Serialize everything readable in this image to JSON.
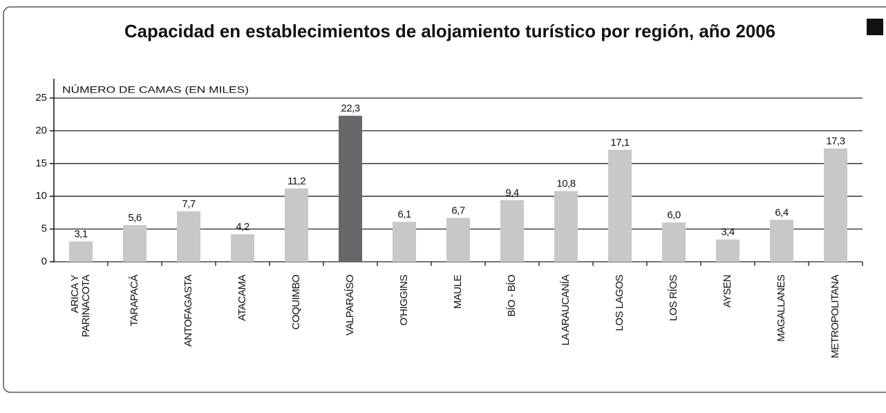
{
  "chart_data": {
    "type": "bar",
    "title": "Capacidad en establecimientos de alojamiento turístico por región, año 2006",
    "y_axis_label": "NÚMERO DE CAMAS (EN MILES)",
    "categories": [
      "ARICA Y\nPARINACOTA",
      "TARAPACÁ",
      "ANTOFAGASTA",
      "ATACAMA",
      "COQUIMBO",
      "VALPARAÍSO",
      "O'HIGGINS",
      "MAULE",
      "BÍO - BÍO",
      "LA ARAUCANÍA",
      "LOS LAGOS",
      "LOS RÍOS",
      "AYSEN",
      "MAGALLANES",
      "METROPOLITANA"
    ],
    "values": [
      3.1,
      5.6,
      7.7,
      4.2,
      11.2,
      22.3,
      6.1,
      6.7,
      9.4,
      10.8,
      17.1,
      6.0,
      3.4,
      6.4,
      17.3
    ],
    "value_labels": [
      "3,1",
      "5,6",
      "7,7",
      "4,2",
      "11,2",
      "22,3",
      "6,1",
      "6,7",
      "9,4",
      "10,8",
      "17,1",
      "6,0",
      "3,4",
      "6,4",
      "17,3"
    ],
    "colors": [
      "#c8c8c8",
      "#c8c8c8",
      "#c8c8c8",
      "#c8c8c8",
      "#c8c8c8",
      "#66666b",
      "#c8c8c8",
      "#c8c8c8",
      "#c8c8c8",
      "#c8c8c8",
      "#c8c8c8",
      "#c8c8c8",
      "#c8c8c8",
      "#c8c8c8",
      "#c8c8c8"
    ],
    "ylim": [
      0,
      25
    ],
    "yticks": [
      0,
      5,
      10,
      15,
      20,
      25
    ],
    "grid": true
  }
}
